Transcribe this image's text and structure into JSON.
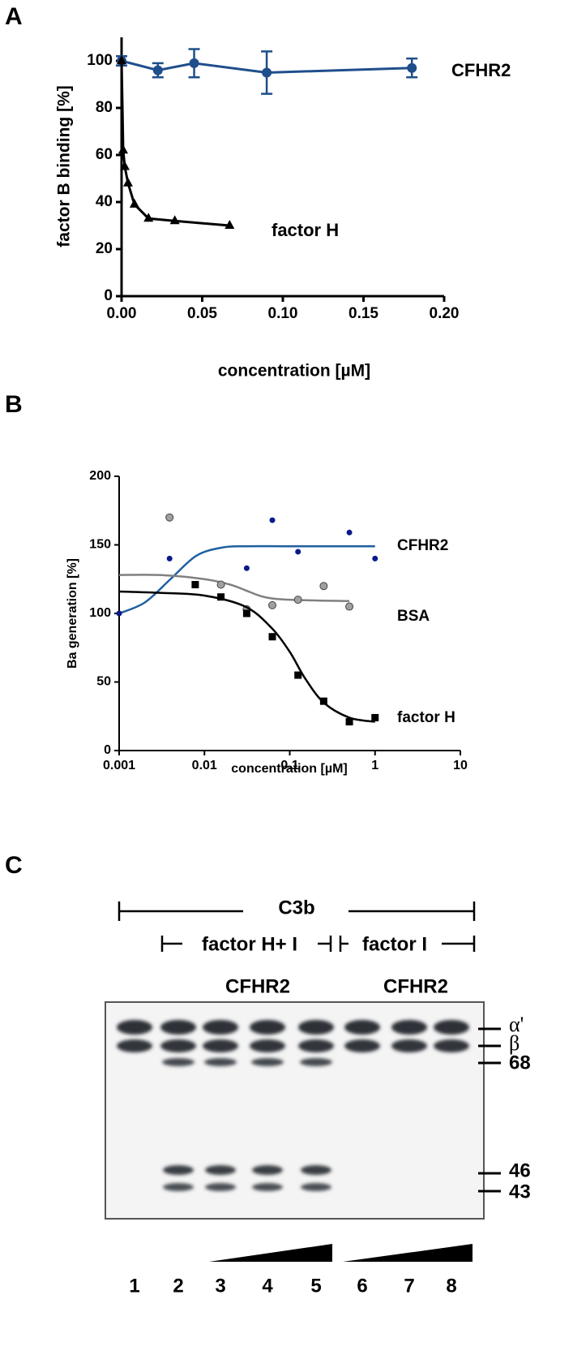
{
  "chart_data": [
    {
      "type": "line",
      "panel": "A",
      "xlabel": "concentration [µM]",
      "ylabel": "factor B binding [%]",
      "xlim": [
        0,
        0.2
      ],
      "ylim": [
        0,
        110
      ],
      "xticks": [
        {
          "value": 0,
          "label": "0.00"
        },
        {
          "value": 0.05,
          "label": "0.05"
        },
        {
          "value": 0.1,
          "label": "0.10"
        },
        {
          "value": 0.15,
          "label": "0.15"
        },
        {
          "value": 0.2,
          "label": "0.20"
        }
      ],
      "yticks": [
        0,
        20,
        40,
        60,
        80,
        100
      ],
      "series": [
        {
          "name": "CFHR2",
          "color": "#1f4e8c",
          "marker": "circle",
          "x": [
            0,
            0.0225,
            0.045,
            0.09,
            0.18
          ],
          "values": [
            100,
            96,
            99,
            95,
            97
          ],
          "errors": [
            2,
            3,
            6,
            9,
            4
          ]
        },
        {
          "name": "factor H",
          "color": "#000000",
          "marker": "triangle",
          "x": [
            0,
            0.001,
            0.002,
            0.004,
            0.008,
            0.0167,
            0.033,
            0.067
          ],
          "values": [
            100,
            62,
            55,
            48,
            39,
            33,
            32,
            30
          ]
        }
      ]
    },
    {
      "type": "scatter",
      "panel": "B",
      "xlabel": "concentration [µM]",
      "ylabel": "Ba generation [%]",
      "xscale": "log",
      "xlim": [
        0.001,
        10
      ],
      "ylim": [
        0,
        200
      ],
      "xticks": [
        0.001,
        0.01,
        0.1,
        1,
        10
      ],
      "yticks": [
        0,
        50,
        100,
        150,
        200
      ],
      "series": [
        {
          "name": "CFHR2",
          "color": "#1f5fa0",
          "marker": "dot",
          "marker_color": "#0a1a8c",
          "x": [
            0.001,
            0.0039,
            0.0313,
            0.0625,
            0.125,
            0.5,
            1
          ],
          "values": [
            100,
            140,
            133,
            168,
            145,
            159,
            140
          ],
          "fit_x": [
            0.001,
            0.002,
            0.004,
            0.008,
            0.016,
            0.03,
            0.1,
            1
          ],
          "fit_values": [
            100,
            108,
            125,
            142,
            148,
            149,
            149,
            149
          ]
        },
        {
          "name": "BSA",
          "color": "#808080",
          "marker": "circle",
          "marker_color": "#a0a0a0",
          "x": [
            0.0039,
            0.0156,
            0.0313,
            0.0625,
            0.125,
            0.25,
            0.5
          ],
          "values": [
            170,
            121,
            103,
            106,
            110,
            120,
            105
          ],
          "fit_x": [
            0.001,
            0.003,
            0.01,
            0.02,
            0.03,
            0.05,
            0.1,
            0.5
          ],
          "fit_values": [
            128,
            128,
            125,
            121,
            117,
            112,
            110,
            109
          ]
        },
        {
          "name": "factor H",
          "color": "#000000",
          "marker": "square",
          "marker_color": "#000000",
          "x": [
            0.0078,
            0.0156,
            0.0313,
            0.0625,
            0.125,
            0.25,
            0.5,
            1
          ],
          "values": [
            121,
            112,
            100,
            83,
            55,
            36,
            21,
            24
          ],
          "fit_x": [
            0.001,
            0.003,
            0.01,
            0.03,
            0.06,
            0.1,
            0.15,
            0.25,
            0.5,
            1
          ],
          "fit_values": [
            116,
            115,
            113,
            105,
            90,
            72,
            53,
            35,
            24,
            21
          ]
        }
      ]
    }
  ],
  "gel": {
    "panel": "C",
    "span_label": "C3b",
    "groups": [
      "factor H+ I",
      "factor I"
    ],
    "titrant": [
      "CFHR2",
      "CFHR2"
    ],
    "bands": [
      "α'",
      "β",
      "68",
      "46",
      "43"
    ],
    "lanes": [
      "1",
      "2",
      "3",
      "4",
      "5",
      "6",
      "7",
      "8"
    ]
  }
}
